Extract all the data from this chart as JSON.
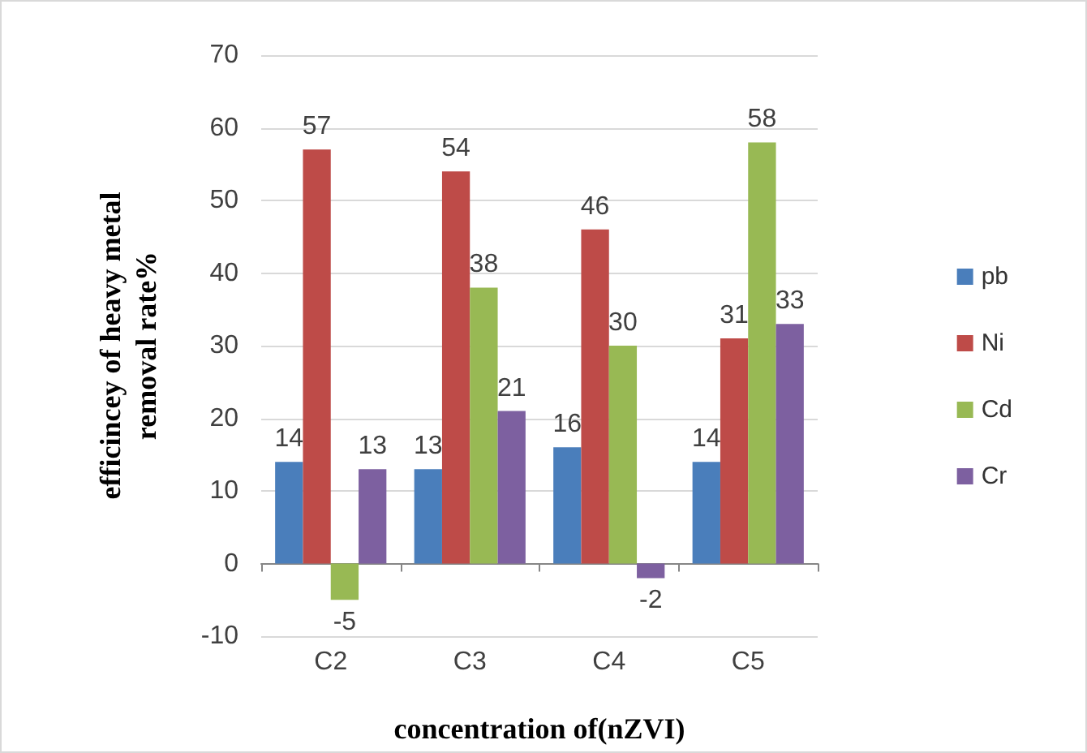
{
  "chart_data": {
    "type": "bar",
    "xlabel": "concentration of(nZVI)",
    "ylabel": "efficincey of heavy metal\nremoval rate%",
    "categories": [
      "C2",
      "C3",
      "C4",
      "C5"
    ],
    "series": [
      {
        "name": "pb",
        "color": "#4a7ebb",
        "values": [
          14,
          13,
          16,
          14
        ]
      },
      {
        "name": "Ni",
        "color": "#be4b48",
        "values": [
          57,
          54,
          46,
          31
        ]
      },
      {
        "name": "Cd",
        "color": "#98b954",
        "values": [
          -5,
          38,
          30,
          58
        ]
      },
      {
        "name": "Cr",
        "color": "#7d60a0",
        "values": [
          13,
          21,
          -2,
          33
        ]
      }
    ],
    "ylim": [
      -10,
      70
    ],
    "yticks": [
      -10,
      0,
      10,
      20,
      30,
      40,
      50,
      60,
      70
    ],
    "grid": "y",
    "legend": "right",
    "data_labels": true
  }
}
